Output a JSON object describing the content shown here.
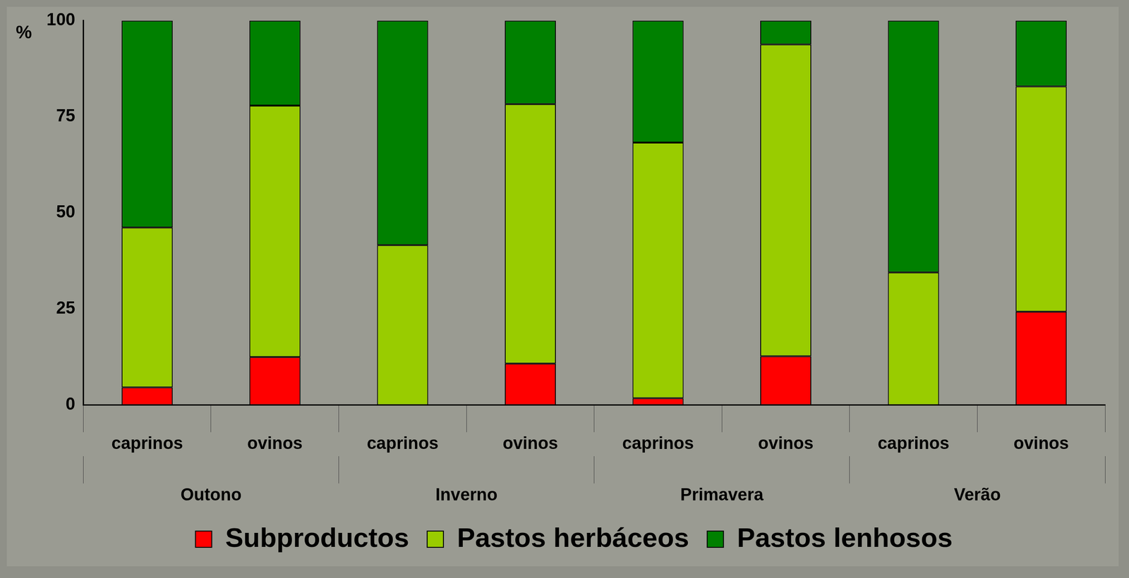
{
  "chart_data": {
    "type": "bar",
    "stacked": true,
    "grid": false,
    "legend": "bottom",
    "y_label": "%",
    "categories": [
      "caprinos",
      "ovinos",
      "caprinos",
      "ovinos",
      "caprinos",
      "ovinos",
      "caprinos",
      "ovinos"
    ],
    "category_groups": [
      "Outono",
      "Inverno",
      "Primavera",
      "Verão"
    ],
    "ylim": [
      0,
      100
    ],
    "yticks": [
      0,
      25,
      50,
      75,
      100
    ],
    "series": [
      {
        "name": "Subproductos",
        "color": "#ff0000",
        "values": [
          4.6,
          12.5,
          0,
          10.8,
          1.8,
          12.7,
          0,
          24.3
        ]
      },
      {
        "name": "Pastos herbáceos",
        "color": "#99cc00",
        "values": [
          41.6,
          65.4,
          41.6,
          67.5,
          66.5,
          81.1,
          34.5,
          58.6
        ]
      },
      {
        "name": "Pastos lenhosos",
        "color": "#008000",
        "values": [
          53.8,
          22.1,
          58.4,
          21.7,
          31.7,
          6.2,
          65.5,
          17.1
        ]
      }
    ]
  }
}
